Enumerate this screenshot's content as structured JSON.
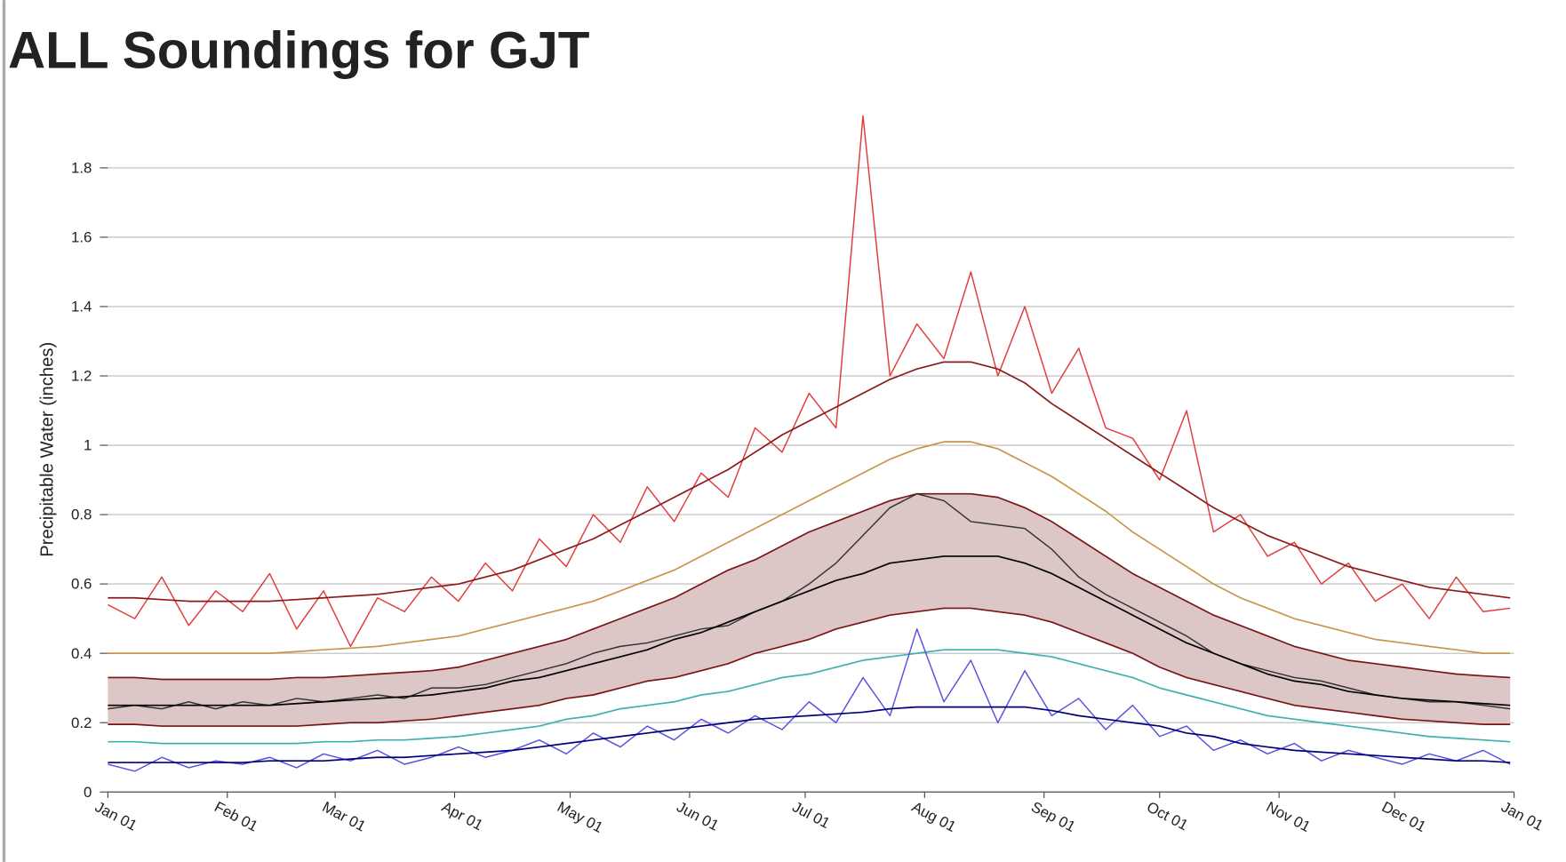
{
  "chart_data": {
    "type": "line",
    "title": "ALL Soundings for GJT",
    "y_label": "Precipitable Water (inches)",
    "x": [
      0,
      7,
      14,
      21,
      28,
      35,
      42,
      49,
      56,
      63,
      70,
      77,
      84,
      91,
      98,
      105,
      112,
      119,
      126,
      133,
      140,
      147,
      154,
      161,
      168,
      175,
      182,
      189,
      196,
      203,
      210,
      217,
      224,
      231,
      238,
      245,
      252,
      259,
      266,
      273,
      280,
      287,
      294,
      301,
      308,
      315,
      322,
      329,
      336,
      343,
      350,
      357,
      364
    ],
    "xlim": [
      0,
      365
    ],
    "xticks": [
      {
        "value": 0,
        "label": "Jan 01"
      },
      {
        "value": 31,
        "label": "Feb 01"
      },
      {
        "value": 59,
        "label": "Mar 01"
      },
      {
        "value": 90,
        "label": "Apr 01"
      },
      {
        "value": 120,
        "label": "May 01"
      },
      {
        "value": 151,
        "label": "Jun 01"
      },
      {
        "value": 181,
        "label": "Jul 01"
      },
      {
        "value": 212,
        "label": "Aug 01"
      },
      {
        "value": 243,
        "label": "Sep 01"
      },
      {
        "value": 273,
        "label": "Oct 01"
      },
      {
        "value": 304,
        "label": "Nov 01"
      },
      {
        "value": 334,
        "label": "Dec 01"
      },
      {
        "value": 365,
        "label": "Jan 01"
      }
    ],
    "ylim": [
      0,
      1.8
    ],
    "yticks": [
      0,
      0.2,
      0.4,
      0.6,
      0.8,
      1,
      1.2,
      1.4,
      1.6,
      1.8
    ],
    "grid": true,
    "series": [
      {
        "color": "#e23b3b",
        "width": 1.3,
        "values": [
          0.54,
          0.5,
          0.62,
          0.48,
          0.58,
          0.52,
          0.63,
          0.47,
          0.58,
          0.42,
          0.56,
          0.52,
          0.62,
          0.55,
          0.66,
          0.58,
          0.73,
          0.65,
          0.8,
          0.72,
          0.88,
          0.78,
          0.92,
          0.85,
          1.05,
          0.98,
          1.15,
          1.05,
          1.95,
          1.2,
          1.35,
          1.25,
          1.5,
          1.2,
          1.4,
          1.15,
          1.28,
          1.05,
          1.02,
          0.9,
          1.1,
          0.75,
          0.8,
          0.68,
          0.72,
          0.6,
          0.66,
          0.55,
          0.6,
          0.5,
          0.62,
          0.52,
          0.53
        ]
      },
      {
        "color": "#8b1a1a",
        "width": 1.5,
        "values": [
          0.56,
          0.56,
          0.555,
          0.55,
          0.55,
          0.55,
          0.55,
          0.555,
          0.56,
          0.565,
          0.57,
          0.58,
          0.59,
          0.6,
          0.62,
          0.64,
          0.67,
          0.7,
          0.73,
          0.77,
          0.81,
          0.85,
          0.89,
          0.93,
          0.98,
          1.03,
          1.07,
          1.11,
          1.15,
          1.19,
          1.22,
          1.24,
          1.24,
          1.22,
          1.18,
          1.12,
          1.07,
          1.02,
          0.97,
          0.92,
          0.87,
          0.82,
          0.78,
          0.74,
          0.71,
          0.68,
          0.65,
          0.63,
          0.61,
          0.59,
          0.58,
          0.57,
          0.56
        ]
      },
      {
        "color": "#c8964a",
        "width": 1.5,
        "values": [
          0.4,
          0.4,
          0.4,
          0.4,
          0.4,
          0.4,
          0.4,
          0.405,
          0.41,
          0.415,
          0.42,
          0.43,
          0.44,
          0.45,
          0.47,
          0.49,
          0.51,
          0.53,
          0.55,
          0.58,
          0.61,
          0.64,
          0.68,
          0.72,
          0.76,
          0.8,
          0.84,
          0.88,
          0.92,
          0.96,
          0.99,
          1.01,
          1.01,
          0.99,
          0.95,
          0.91,
          0.86,
          0.81,
          0.75,
          0.7,
          0.65,
          0.6,
          0.56,
          0.53,
          0.5,
          0.48,
          0.46,
          0.44,
          0.43,
          0.42,
          0.41,
          0.4,
          0.4
        ]
      },
      {
        "color": "#7a1515",
        "width": 1.5,
        "band_fill": "#dcc6c6",
        "values": [
          0.33,
          0.33,
          0.325,
          0.325,
          0.325,
          0.325,
          0.325,
          0.33,
          0.33,
          0.335,
          0.34,
          0.345,
          0.35,
          0.36,
          0.38,
          0.4,
          0.42,
          0.44,
          0.47,
          0.5,
          0.53,
          0.56,
          0.6,
          0.64,
          0.67,
          0.71,
          0.75,
          0.78,
          0.81,
          0.84,
          0.86,
          0.86,
          0.86,
          0.85,
          0.82,
          0.78,
          0.73,
          0.68,
          0.63,
          0.59,
          0.55,
          0.51,
          0.48,
          0.45,
          0.42,
          0.4,
          0.38,
          0.37,
          0.36,
          0.35,
          0.34,
          0.335,
          0.33
        ]
      },
      {
        "color": "#7a1515",
        "width": 1.5,
        "values": [
          0.195,
          0.195,
          0.19,
          0.19,
          0.19,
          0.19,
          0.19,
          0.19,
          0.195,
          0.2,
          0.2,
          0.205,
          0.21,
          0.22,
          0.23,
          0.24,
          0.25,
          0.27,
          0.28,
          0.3,
          0.32,
          0.33,
          0.35,
          0.37,
          0.4,
          0.42,
          0.44,
          0.47,
          0.49,
          0.51,
          0.52,
          0.53,
          0.53,
          0.52,
          0.51,
          0.49,
          0.46,
          0.43,
          0.4,
          0.36,
          0.33,
          0.31,
          0.29,
          0.27,
          0.25,
          0.24,
          0.23,
          0.22,
          0.21,
          0.205,
          0.2,
          0.195,
          0.195
        ]
      },
      {
        "color": "#333333",
        "width": 1.3,
        "values": [
          0.24,
          0.25,
          0.24,
          0.26,
          0.24,
          0.26,
          0.25,
          0.27,
          0.26,
          0.27,
          0.28,
          0.27,
          0.3,
          0.3,
          0.31,
          0.33,
          0.35,
          0.37,
          0.4,
          0.42,
          0.43,
          0.45,
          0.47,
          0.48,
          0.52,
          0.55,
          0.6,
          0.66,
          0.74,
          0.82,
          0.86,
          0.84,
          0.78,
          0.77,
          0.76,
          0.7,
          0.62,
          0.57,
          0.53,
          0.49,
          0.45,
          0.4,
          0.37,
          0.35,
          0.33,
          0.32,
          0.3,
          0.28,
          0.27,
          0.26,
          0.26,
          0.25,
          0.24
        ]
      },
      {
        "color": "#000000",
        "width": 1.5,
        "values": [
          0.25,
          0.25,
          0.25,
          0.25,
          0.25,
          0.25,
          0.25,
          0.255,
          0.26,
          0.265,
          0.27,
          0.275,
          0.28,
          0.29,
          0.3,
          0.32,
          0.33,
          0.35,
          0.37,
          0.39,
          0.41,
          0.44,
          0.46,
          0.49,
          0.52,
          0.55,
          0.58,
          0.61,
          0.63,
          0.66,
          0.67,
          0.68,
          0.68,
          0.68,
          0.66,
          0.63,
          0.59,
          0.55,
          0.51,
          0.47,
          0.43,
          0.4,
          0.37,
          0.34,
          0.32,
          0.31,
          0.29,
          0.28,
          0.27,
          0.265,
          0.26,
          0.255,
          0.25
        ]
      },
      {
        "color": "#3fb0ad",
        "width": 1.5,
        "values": [
          0.145,
          0.145,
          0.14,
          0.14,
          0.14,
          0.14,
          0.14,
          0.14,
          0.145,
          0.145,
          0.15,
          0.15,
          0.155,
          0.16,
          0.17,
          0.18,
          0.19,
          0.21,
          0.22,
          0.24,
          0.25,
          0.26,
          0.28,
          0.29,
          0.31,
          0.33,
          0.34,
          0.36,
          0.38,
          0.39,
          0.4,
          0.41,
          0.41,
          0.41,
          0.4,
          0.39,
          0.37,
          0.35,
          0.33,
          0.3,
          0.28,
          0.26,
          0.24,
          0.22,
          0.21,
          0.2,
          0.19,
          0.18,
          0.17,
          0.16,
          0.155,
          0.15,
          0.145
        ]
      },
      {
        "color": "#5a50e0",
        "width": 1.3,
        "values": [
          0.08,
          0.06,
          0.1,
          0.07,
          0.09,
          0.08,
          0.1,
          0.07,
          0.11,
          0.09,
          0.12,
          0.08,
          0.1,
          0.13,
          0.1,
          0.12,
          0.15,
          0.11,
          0.17,
          0.13,
          0.19,
          0.15,
          0.21,
          0.17,
          0.22,
          0.18,
          0.26,
          0.2,
          0.33,
          0.22,
          0.47,
          0.26,
          0.38,
          0.2,
          0.35,
          0.22,
          0.27,
          0.18,
          0.25,
          0.16,
          0.19,
          0.12,
          0.15,
          0.11,
          0.14,
          0.09,
          0.12,
          0.1,
          0.08,
          0.11,
          0.09,
          0.12,
          0.08
        ]
      },
      {
        "color": "#00007a",
        "width": 1.5,
        "values": [
          0.085,
          0.085,
          0.085,
          0.085,
          0.085,
          0.085,
          0.09,
          0.09,
          0.09,
          0.095,
          0.1,
          0.1,
          0.105,
          0.11,
          0.115,
          0.12,
          0.13,
          0.14,
          0.15,
          0.16,
          0.17,
          0.18,
          0.19,
          0.2,
          0.21,
          0.215,
          0.22,
          0.225,
          0.23,
          0.24,
          0.245,
          0.245,
          0.245,
          0.245,
          0.245,
          0.235,
          0.22,
          0.21,
          0.2,
          0.19,
          0.17,
          0.16,
          0.14,
          0.13,
          0.12,
          0.115,
          0.11,
          0.105,
          0.1,
          0.095,
          0.09,
          0.09,
          0.085
        ]
      }
    ]
  }
}
